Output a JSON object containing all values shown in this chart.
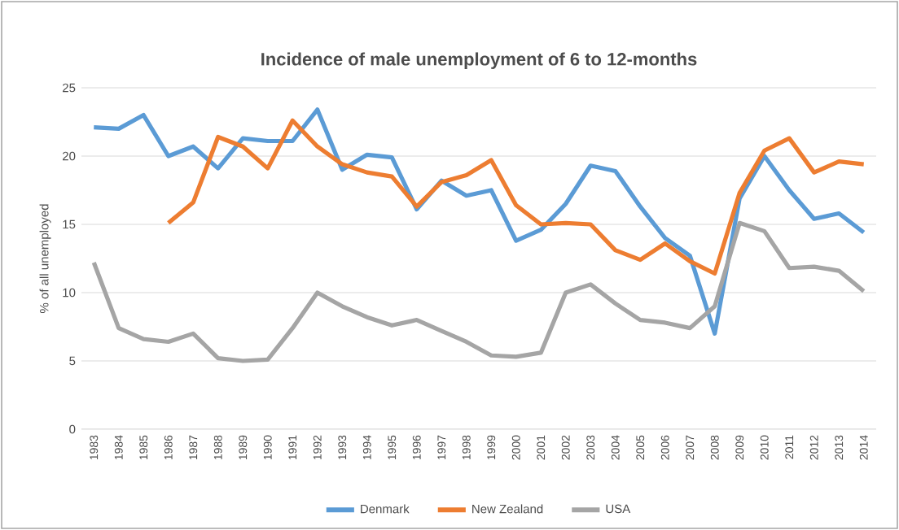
{
  "chart_data": {
    "type": "line",
    "title": "Incidence of male unemployment of 6 to 12-months",
    "ylabel": "% of all unemployed",
    "categories": [
      "1983",
      "1984",
      "1985",
      "1986",
      "1987",
      "1988",
      "1989",
      "1990",
      "1991",
      "1992",
      "1993",
      "1994",
      "1995",
      "1996",
      "1997",
      "1998",
      "1999",
      "2000",
      "2001",
      "2002",
      "2003",
      "2004",
      "2005",
      "2006",
      "2007",
      "2008",
      "2009",
      "2010",
      "2011",
      "2012",
      "2013",
      "2014"
    ],
    "series": [
      {
        "name": "Denmark",
        "color": "#5b9bd5",
        "values": [
          22.1,
          22.0,
          23.0,
          20.0,
          20.7,
          19.1,
          21.3,
          21.1,
          21.1,
          23.4,
          19.0,
          20.1,
          19.9,
          16.1,
          18.2,
          17.1,
          17.5,
          13.8,
          14.6,
          16.5,
          19.3,
          18.9,
          16.3,
          14.0,
          12.7,
          7.0,
          16.9,
          20.0,
          17.5,
          15.4,
          15.8,
          14.4
        ]
      },
      {
        "name": "New Zealand",
        "color": "#ed7d31",
        "values": [
          null,
          null,
          null,
          15.1,
          16.6,
          21.4,
          20.7,
          19.1,
          22.6,
          20.7,
          19.4,
          18.8,
          18.5,
          16.3,
          18.1,
          18.6,
          19.7,
          16.4,
          15.0,
          15.1,
          15.0,
          13.1,
          12.4,
          13.6,
          12.3,
          11.4,
          17.3,
          20.4,
          21.3,
          18.8,
          19.6,
          19.4
        ]
      },
      {
        "name": "USA",
        "color": "#a5a5a5",
        "values": [
          12.2,
          7.4,
          6.6,
          6.4,
          7.0,
          5.2,
          5.0,
          5.1,
          7.4,
          10.0,
          9.0,
          8.2,
          7.6,
          8.0,
          7.2,
          6.4,
          5.4,
          5.3,
          5.6,
          10.0,
          10.6,
          9.2,
          8.0,
          7.8,
          7.4,
          9.0,
          15.1,
          14.5,
          11.8,
          11.9,
          11.6,
          10.1
        ]
      }
    ],
    "ylim": [
      0,
      25
    ],
    "yticks": [
      0,
      5,
      10,
      15,
      20,
      25
    ],
    "grid": "y",
    "legend": "bottom",
    "marker": "none",
    "line_style": "solid"
  }
}
